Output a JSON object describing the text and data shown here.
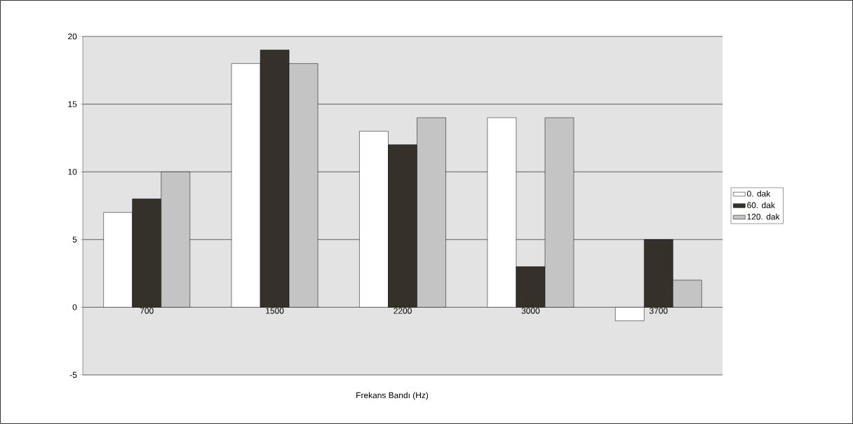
{
  "chart_data": {
    "type": "bar",
    "xlabel": "Frekans Bandı (Hz)",
    "categories": [
      "700",
      "1500",
      "2200",
      "3000",
      "3700"
    ],
    "series": [
      {
        "name": "0. dak",
        "color": "#ffffff",
        "values": [
          7,
          18,
          13,
          14,
          -1
        ]
      },
      {
        "name": "60. dak",
        "color": "#36302b",
        "values": [
          8,
          19,
          12,
          3,
          5
        ]
      },
      {
        "name": "120. dak",
        "color": "#c4c4c4",
        "values": [
          10,
          18,
          14,
          14,
          2
        ]
      }
    ],
    "ylim": [
      -5,
      20
    ],
    "yticks": [
      -5,
      0,
      5,
      10,
      15,
      20
    ],
    "grid": "y",
    "legend": "right"
  }
}
